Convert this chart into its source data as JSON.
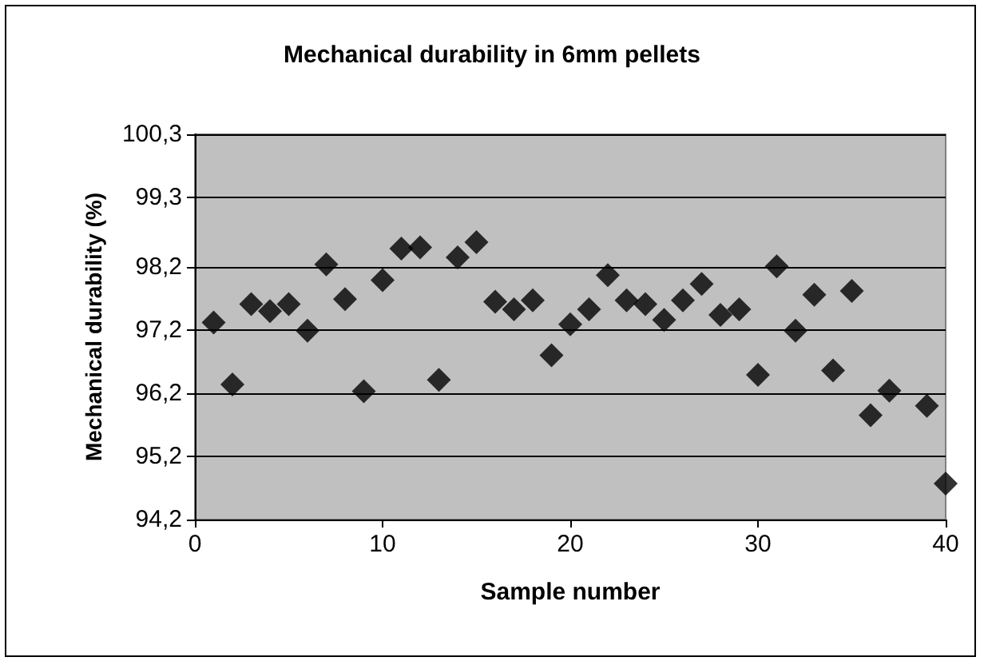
{
  "chart_data": {
    "type": "scatter",
    "title": "Mechanical durability in 6mm pellets",
    "xlabel": "Sample number",
    "ylabel": "Mechanical durability (%)",
    "x": [
      1,
      2,
      3,
      4,
      5,
      6,
      7,
      8,
      9,
      10,
      11,
      12,
      13,
      14,
      15,
      16,
      17,
      18,
      19,
      20,
      21,
      22,
      23,
      24,
      25,
      26,
      27,
      28,
      29,
      30,
      31,
      32,
      33,
      34,
      35,
      36,
      37,
      39,
      40
    ],
    "values": [
      97.32,
      96.34,
      97.61,
      97.5,
      97.61,
      97.19,
      98.24,
      97.69,
      96.23,
      97.99,
      98.49,
      98.51,
      96.41,
      98.35,
      98.59,
      97.65,
      97.53,
      97.67,
      96.8,
      97.29,
      97.53,
      98.07,
      97.67,
      97.61,
      97.36,
      97.67,
      97.93,
      97.44,
      97.53,
      96.49,
      98.21,
      97.19,
      97.76,
      96.56,
      97.82,
      95.85,
      96.24,
      96.0,
      94.77
    ],
    "color": "#000000",
    "marker": "diamond",
    "xlim": [
      0,
      40
    ],
    "xticks": [
      0,
      10,
      20,
      30,
      40
    ],
    "ylim": [
      94.2,
      100.3
    ],
    "yticks": [
      {
        "value": 94.2,
        "label": "94,2"
      },
      {
        "value": 95.2,
        "label": "95,2"
      },
      {
        "value": 96.2,
        "label": "96,2"
      },
      {
        "value": 97.2,
        "label": "97,2"
      },
      {
        "value": 98.2,
        "label": "98,2"
      },
      {
        "value": 99.3,
        "label": "99,3"
      },
      {
        "value": 100.3,
        "label": "100,3"
      }
    ],
    "grid": "y"
  }
}
